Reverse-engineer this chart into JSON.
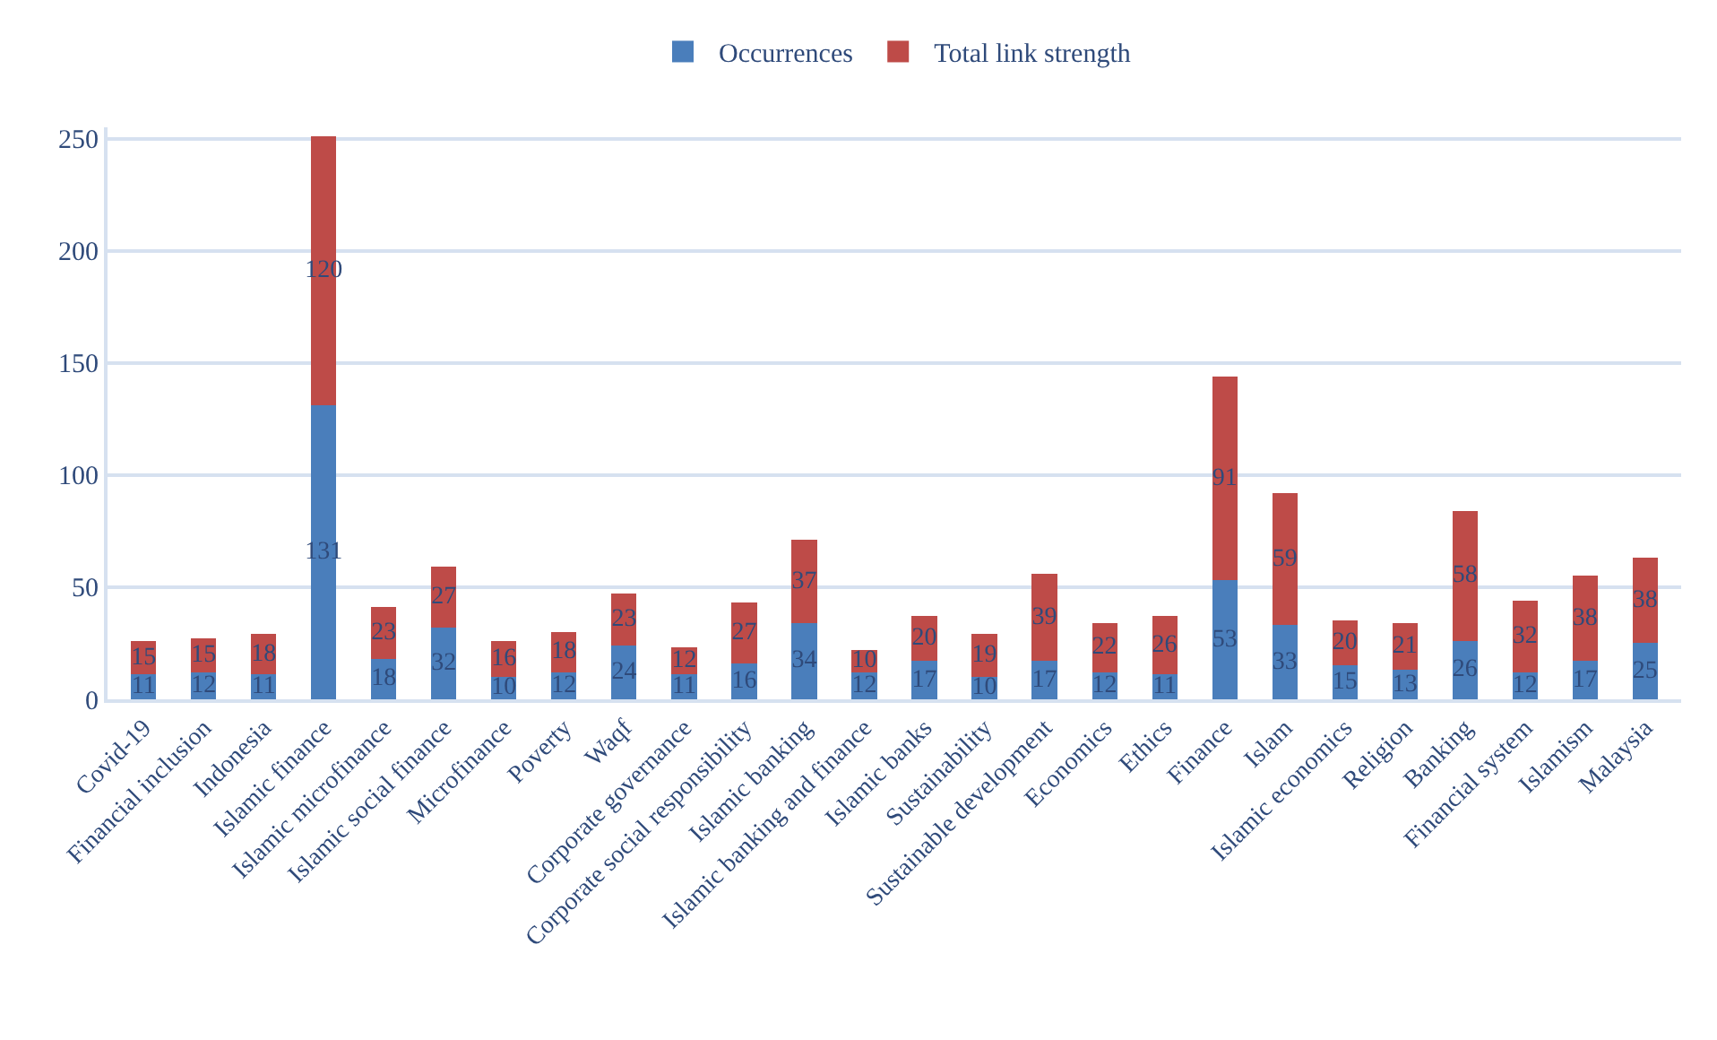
{
  "chart_data": {
    "type": "bar",
    "stacked": true,
    "data_labels": true,
    "legend": "top",
    "grid": "y",
    "categories": [
      "Covid-19",
      "Financial inclusion",
      "Indonesia",
      "Islamic finance",
      "Islamic microfinance",
      "Islamic social finance",
      "Microfinance",
      "Poverty",
      "Waqf",
      "Corporate governance",
      "Corporate social responsibility",
      "Islamic banking",
      "Islamic banking and finance",
      "Islamic banks",
      "Sustainability",
      "Sustainable development",
      "Economics",
      "Ethics",
      "Finance",
      "Islam",
      "Islamic economics",
      "Religion",
      "Banking",
      "Financial system",
      "Islamism",
      "Malaysia"
    ],
    "series": [
      {
        "name": "Occurrences",
        "color": "#4a7ebb",
        "values": [
          11,
          12,
          11,
          131,
          18,
          32,
          10,
          12,
          24,
          11,
          16,
          34,
          12,
          17,
          10,
          17,
          12,
          11,
          53,
          33,
          15,
          13,
          26,
          12,
          17,
          25
        ]
      },
      {
        "name": "Total link strength",
        "color": "#be4b48",
        "values": [
          15,
          15,
          18,
          120,
          23,
          27,
          16,
          18,
          23,
          12,
          27,
          37,
          10,
          20,
          19,
          39,
          22,
          26,
          91,
          59,
          20,
          21,
          58,
          32,
          38,
          38
        ]
      }
    ],
    "ylim": [
      0,
      255
    ],
    "yticks": [
      0,
      50,
      100,
      150,
      200,
      250
    ]
  }
}
